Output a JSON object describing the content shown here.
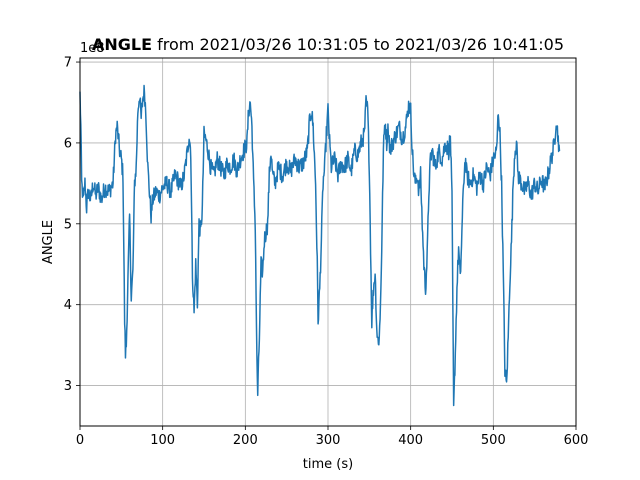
{
  "chart_data": {
    "type": "line",
    "title_bold": "ANGLE",
    "title_rest": " from 2021/03/26 10:31:05 to 2021/03/26 10:41:05",
    "xlabel": "time (s)",
    "ylabel": "ANGLE",
    "offset_text": "1e8",
    "xlim": [
      0,
      600
    ],
    "ylim": [
      2.5,
      7.05
    ],
    "x_ticks": [
      0,
      100,
      200,
      300,
      400,
      500,
      600
    ],
    "y_ticks": [
      3,
      4,
      5,
      6,
      7
    ],
    "grid": true,
    "line_color": "#1f77b4",
    "series": [
      {
        "points": [
          [
            0,
            6.6
          ],
          [
            1,
            6.2
          ],
          [
            2,
            5.5
          ],
          [
            4,
            5.3
          ],
          [
            6,
            5.5
          ],
          [
            8,
            5.2
          ],
          [
            10,
            5.4
          ],
          [
            13,
            5.3
          ],
          [
            16,
            5.5
          ],
          [
            19,
            5.35
          ],
          [
            22,
            5.45
          ],
          [
            26,
            5.3
          ],
          [
            30,
            5.45
          ],
          [
            35,
            5.4
          ],
          [
            40,
            5.5
          ],
          [
            43,
            6.1
          ],
          [
            45,
            6.2
          ],
          [
            48,
            5.9
          ],
          [
            50,
            5.8
          ],
          [
            52,
            5.6
          ],
          [
            54,
            3.8
          ],
          [
            55,
            3.4
          ],
          [
            56,
            3.5
          ],
          [
            58,
            4.3
          ],
          [
            60,
            5.1
          ],
          [
            62,
            4.1
          ],
          [
            64,
            4.4
          ],
          [
            66,
            5.5
          ],
          [
            68,
            5.7
          ],
          [
            70,
            6.4
          ],
          [
            72,
            6.6
          ],
          [
            74,
            6.3
          ],
          [
            76,
            6.55
          ],
          [
            78,
            6.65
          ],
          [
            80,
            6.3
          ],
          [
            82,
            5.7
          ],
          [
            84,
            5.4
          ],
          [
            86,
            5.1
          ],
          [
            88,
            5.3
          ],
          [
            92,
            5.4
          ],
          [
            96,
            5.35
          ],
          [
            100,
            5.45
          ],
          [
            105,
            5.5
          ],
          [
            110,
            5.4
          ],
          [
            115,
            5.6
          ],
          [
            118,
            5.55
          ],
          [
            122,
            5.45
          ],
          [
            126,
            5.6
          ],
          [
            130,
            5.9
          ],
          [
            132,
            6.1
          ],
          [
            134,
            5.9
          ],
          [
            136,
            4.4
          ],
          [
            138,
            3.9
          ],
          [
            140,
            4.5
          ],
          [
            142,
            4.0
          ],
          [
            144,
            5.0
          ],
          [
            146,
            4.9
          ],
          [
            148,
            5.2
          ],
          [
            150,
            6.1
          ],
          [
            152,
            6.05
          ],
          [
            155,
            5.9
          ],
          [
            158,
            5.7
          ],
          [
            162,
            5.6
          ],
          [
            166,
            5.8
          ],
          [
            170,
            5.7
          ],
          [
            174,
            5.6
          ],
          [
            178,
            5.75
          ],
          [
            182,
            5.7
          ],
          [
            186,
            5.8
          ],
          [
            190,
            5.65
          ],
          [
            194,
            5.8
          ],
          [
            198,
            5.9
          ],
          [
            202,
            6.0
          ],
          [
            204,
            6.4
          ],
          [
            206,
            6.5
          ],
          [
            208,
            6.2
          ],
          [
            210,
            5.5
          ],
          [
            212,
            5.0
          ],
          [
            214,
            3.3
          ],
          [
            215,
            2.9
          ],
          [
            217,
            3.6
          ],
          [
            219,
            4.5
          ],
          [
            221,
            4.4
          ],
          [
            223,
            4.8
          ],
          [
            225,
            4.9
          ],
          [
            227,
            5.0
          ],
          [
            229,
            5.6
          ],
          [
            231,
            5.9
          ],
          [
            233,
            5.6
          ],
          [
            236,
            5.5
          ],
          [
            240,
            5.7
          ],
          [
            245,
            5.6
          ],
          [
            250,
            5.75
          ],
          [
            255,
            5.65
          ],
          [
            260,
            5.8
          ],
          [
            265,
            5.7
          ],
          [
            270,
            5.75
          ],
          [
            275,
            5.9
          ],
          [
            278,
            6.3
          ],
          [
            280,
            6.4
          ],
          [
            282,
            6.2
          ],
          [
            285,
            5.5
          ],
          [
            287,
            4.5
          ],
          [
            288,
            3.8
          ],
          [
            290,
            4.2
          ],
          [
            292,
            4.8
          ],
          [
            294,
            5.5
          ],
          [
            296,
            5.7
          ],
          [
            298,
            6.1
          ],
          [
            300,
            6.4
          ],
          [
            302,
            6.0
          ],
          [
            304,
            5.7
          ],
          [
            308,
            5.8
          ],
          [
            312,
            5.6
          ],
          [
            316,
            5.75
          ],
          [
            320,
            5.7
          ],
          [
            324,
            5.8
          ],
          [
            328,
            5.65
          ],
          [
            332,
            5.9
          ],
          [
            336,
            5.85
          ],
          [
            340,
            6.0
          ],
          [
            344,
            6.1
          ],
          [
            346,
            6.5
          ],
          [
            348,
            6.4
          ],
          [
            350,
            5.7
          ],
          [
            352,
            4.4
          ],
          [
            353,
            3.8
          ],
          [
            355,
            4.2
          ],
          [
            357,
            4.4
          ],
          [
            359,
            3.7
          ],
          [
            361,
            3.5
          ],
          [
            363,
            3.8
          ],
          [
            365,
            4.7
          ],
          [
            367,
            5.9
          ],
          [
            369,
            6.3
          ],
          [
            371,
            6.0
          ],
          [
            373,
            6.2
          ],
          [
            375,
            5.9
          ],
          [
            378,
            6.0
          ],
          [
            382,
            6.1
          ],
          [
            386,
            6.2
          ],
          [
            390,
            6.05
          ],
          [
            394,
            6.2
          ],
          [
            398,
            6.5
          ],
          [
            400,
            6.4
          ],
          [
            402,
            5.9
          ],
          [
            404,
            5.6
          ],
          [
            406,
            5.5
          ],
          [
            408,
            5.6
          ],
          [
            410,
            5.4
          ],
          [
            412,
            5.6
          ],
          [
            414,
            5.0
          ],
          [
            416,
            4.5
          ],
          [
            418,
            4.2
          ],
          [
            420,
            4.6
          ],
          [
            422,
            5.4
          ],
          [
            424,
            5.8
          ],
          [
            426,
            5.9
          ],
          [
            430,
            5.7
          ],
          [
            434,
            5.9
          ],
          [
            438,
            5.8
          ],
          [
            442,
            6.0
          ],
          [
            446,
            5.9
          ],
          [
            448,
            6.1
          ],
          [
            450,
            5.3
          ],
          [
            452,
            2.7
          ],
          [
            454,
            3.4
          ],
          [
            456,
            4.2
          ],
          [
            458,
            4.7
          ],
          [
            460,
            4.3
          ],
          [
            462,
            4.9
          ],
          [
            464,
            5.5
          ],
          [
            466,
            5.8
          ],
          [
            468,
            5.6
          ],
          [
            472,
            5.5
          ],
          [
            476,
            5.6
          ],
          [
            480,
            5.45
          ],
          [
            484,
            5.6
          ],
          [
            488,
            5.5
          ],
          [
            492,
            5.7
          ],
          [
            496,
            5.6
          ],
          [
            500,
            5.8
          ],
          [
            504,
            5.9
          ],
          [
            506,
            6.4
          ],
          [
            508,
            6.1
          ],
          [
            510,
            5.5
          ],
          [
            512,
            4.4
          ],
          [
            514,
            3.2
          ],
          [
            516,
            3.0
          ],
          [
            518,
            3.6
          ],
          [
            520,
            4.3
          ],
          [
            522,
            4.8
          ],
          [
            524,
            5.5
          ],
          [
            526,
            5.9
          ],
          [
            528,
            6.0
          ],
          [
            530,
            5.6
          ],
          [
            534,
            5.5
          ],
          [
            538,
            5.4
          ],
          [
            542,
            5.5
          ],
          [
            546,
            5.35
          ],
          [
            550,
            5.5
          ],
          [
            554,
            5.4
          ],
          [
            558,
            5.55
          ],
          [
            562,
            5.45
          ],
          [
            566,
            5.6
          ],
          [
            570,
            5.8
          ],
          [
            574,
            6.0
          ],
          [
            576,
            6.3
          ],
          [
            578,
            6.1
          ],
          [
            580,
            5.9
          ]
        ]
      }
    ]
  }
}
